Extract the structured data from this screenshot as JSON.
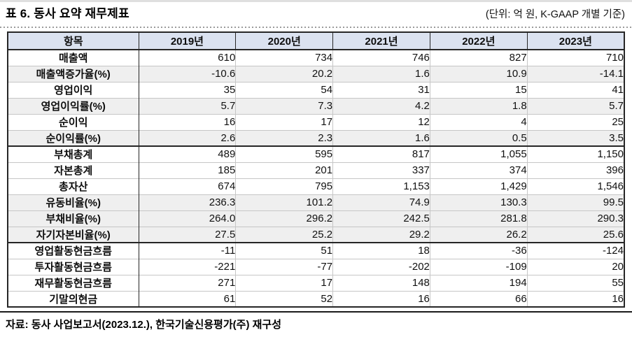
{
  "header": {
    "title": "표 6. 동사 요약 재무제표",
    "unit_note": "(단위: 억 원, K-GAAP 개별 기준)"
  },
  "table": {
    "columns": [
      "항목",
      "2019년",
      "2020년",
      "2021년",
      "2022년",
      "2023년"
    ],
    "rows": [
      {
        "label": "매출액",
        "values": [
          "610",
          "734",
          "746",
          "827",
          "710"
        ],
        "shaded": false,
        "group_start": false
      },
      {
        "label": "매출액증가율(%)",
        "values": [
          "-10.6",
          "20.2",
          "1.6",
          "10.9",
          "-14.1"
        ],
        "shaded": true,
        "group_start": false
      },
      {
        "label": "영업이익",
        "values": [
          "35",
          "54",
          "31",
          "15",
          "41"
        ],
        "shaded": false,
        "group_start": false
      },
      {
        "label": "영업이익률(%)",
        "values": [
          "5.7",
          "7.3",
          "4.2",
          "1.8",
          "5.7"
        ],
        "shaded": true,
        "group_start": false
      },
      {
        "label": "순이익",
        "values": [
          "16",
          "17",
          "12",
          "4",
          "25"
        ],
        "shaded": false,
        "group_start": false
      },
      {
        "label": "순이익률(%)",
        "values": [
          "2.6",
          "2.3",
          "1.6",
          "0.5",
          "3.5"
        ],
        "shaded": true,
        "group_start": false
      },
      {
        "label": "부채총계",
        "values": [
          "489",
          "595",
          "817",
          "1,055",
          "1,150"
        ],
        "shaded": false,
        "group_start": true
      },
      {
        "label": "자본총계",
        "values": [
          "185",
          "201",
          "337",
          "374",
          "396"
        ],
        "shaded": false,
        "group_start": false
      },
      {
        "label": "총자산",
        "values": [
          "674",
          "795",
          "1,153",
          "1,429",
          "1,546"
        ],
        "shaded": false,
        "group_start": false
      },
      {
        "label": "유동비율(%)",
        "values": [
          "236.3",
          "101.2",
          "74.9",
          "130.3",
          "99.5"
        ],
        "shaded": true,
        "group_start": false
      },
      {
        "label": "부채비율(%)",
        "values": [
          "264.0",
          "296.2",
          "242.5",
          "281.8",
          "290.3"
        ],
        "shaded": true,
        "group_start": false
      },
      {
        "label": "자기자본비율(%)",
        "values": [
          "27.5",
          "25.2",
          "29.2",
          "26.2",
          "25.6"
        ],
        "shaded": true,
        "group_start": false
      },
      {
        "label": "영업활동현금흐름",
        "values": [
          "-11",
          "51",
          "18",
          "-36",
          "-124"
        ],
        "shaded": false,
        "group_start": true
      },
      {
        "label": "투자활동현금흐름",
        "values": [
          "-221",
          "-77",
          "-202",
          "-109",
          "20"
        ],
        "shaded": false,
        "group_start": false
      },
      {
        "label": "재무활동현금흐름",
        "values": [
          "271",
          "17",
          "148",
          "194",
          "55"
        ],
        "shaded": false,
        "group_start": false
      },
      {
        "label": "기말의현금",
        "values": [
          "61",
          "52",
          "16",
          "66",
          "16"
        ],
        "shaded": false,
        "group_start": false
      }
    ]
  },
  "footer": {
    "source": "자료: 동사 사업보고서(2023.12.), 한국기술신용평가(주) 재구성"
  },
  "colors": {
    "header_bg": "#dbe2f0",
    "stripe_bg": "#efefef",
    "border_dark": "#262626",
    "border_light": "#c6c6c6"
  }
}
